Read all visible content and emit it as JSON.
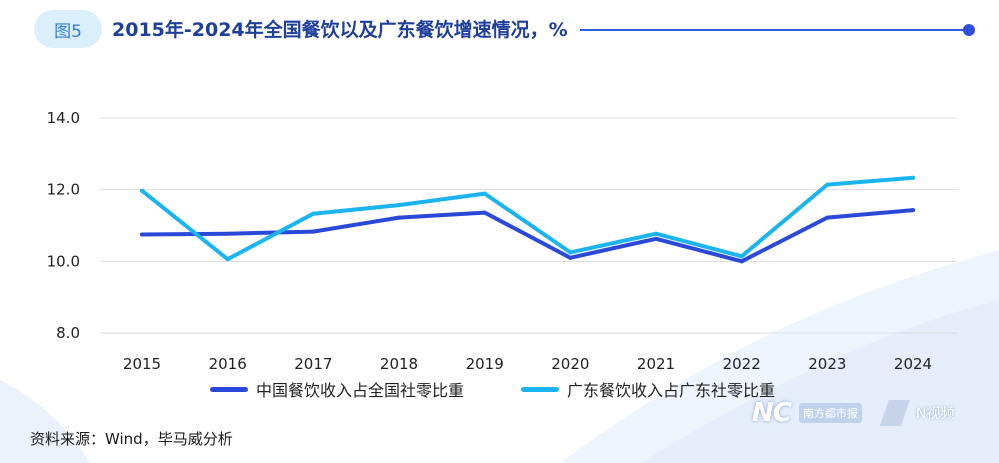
{
  "header": {
    "figure_label": "图5",
    "title": "2015年-2024年全国餐饮以及广东餐饮增速情况，%"
  },
  "chart_data": {
    "type": "line",
    "title": "2015年-2024年全国餐饮以及广东餐饮增速情况，%",
    "categories": [
      "2015",
      "2016",
      "2017",
      "2018",
      "2019",
      "2020",
      "2021",
      "2022",
      "2023",
      "2024"
    ],
    "y_ticks": [
      "8.0",
      "10.0",
      "12.0",
      "14.0"
    ],
    "ylim": [
      8.0,
      14.0
    ],
    "grid": true,
    "legend_position": "bottom",
    "series": [
      {
        "name": "中国餐饮收入占全国社零比重",
        "color": "#2b49d8",
        "values": [
          10.75,
          10.77,
          10.83,
          11.22,
          11.36,
          10.1,
          10.63,
          10.0,
          11.22,
          11.43
        ]
      },
      {
        "name": "广东餐饮收入占广东社零比重",
        "color": "#1ab5f0",
        "values": [
          11.97,
          10.06,
          11.33,
          11.57,
          11.89,
          10.25,
          10.77,
          10.14,
          12.14,
          12.33
        ]
      }
    ]
  },
  "footer": {
    "source": "资料来源：Wind，毕马威分析",
    "logo_nc": "NC",
    "logo_paper": "南方都市报",
    "logo_video": "N视频"
  }
}
